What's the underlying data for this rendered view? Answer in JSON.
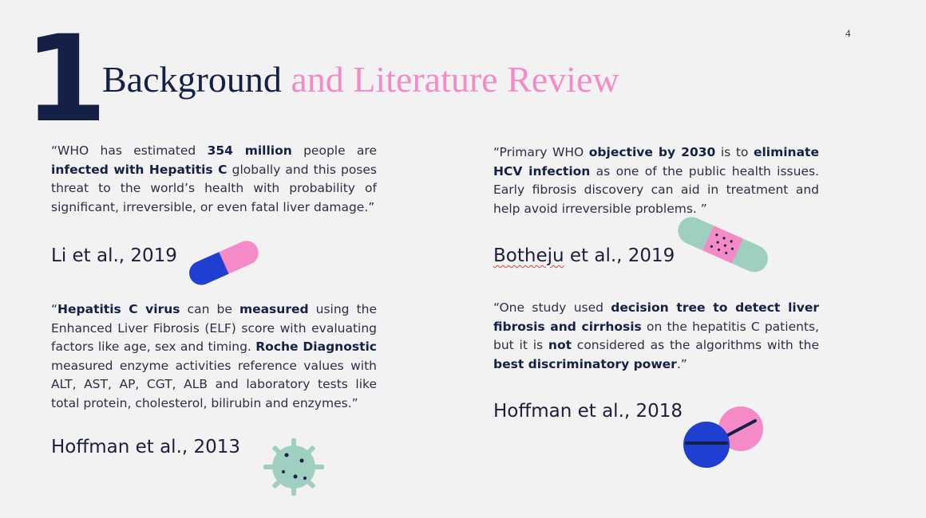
{
  "slide": {
    "page_number": "4",
    "big_number": "1",
    "title_part1": "Background",
    "title_part2": " and Literature Review"
  },
  "quotes": [
    {
      "segments": [
        {
          "t": "“WHO has estimated ",
          "b": false
        },
        {
          "t": "354 million",
          "b": true
        },
        {
          "t": " people are ",
          "b": false
        },
        {
          "t": "infected with Hepatitis C",
          "b": true
        },
        {
          "t": " globally and this poses threat to the world’s health with probability of significant, irreversible, or even fatal liver damage.”",
          "b": false
        }
      ],
      "citation": "Li et al., 2019"
    },
    {
      "segments": [
        {
          "t": "“Primary WHO ",
          "b": false
        },
        {
          "t": "objective by 2030",
          "b": true
        },
        {
          "t": " is to ",
          "b": false
        },
        {
          "t": "eliminate HCV infection",
          "b": true
        },
        {
          "t": " as one of the public health issues. Early fibrosis discovery can aid in treatment and help avoid irreversible problems. ”",
          "b": false
        }
      ],
      "citation_author": "Botheju",
      "citation_rest": " et al., 2019"
    },
    {
      "segments": [
        {
          "t": "“",
          "b": false
        },
        {
          "t": "Hepatitis C virus",
          "b": true
        },
        {
          "t": " can be ",
          "b": false
        },
        {
          "t": "measured",
          "b": true
        },
        {
          "t": " using the Enhanced Liver Fibrosis (ELF) score with evaluating factors like age, sex and timing. ",
          "b": false
        },
        {
          "t": "Roche Diagnostic",
          "b": true
        },
        {
          "t": " measured enzyme activities reference values with ALT, AST, AP, CGT, ALB and laboratory tests like total protein, cholesterol, bilirubin and enzymes.”",
          "b": false
        }
      ],
      "citation": "Hoffman et al., 2013"
    },
    {
      "segments": [
        {
          "t": "“One study used ",
          "b": false
        },
        {
          "t": "decision tree to detect liver fibrosis and cirrhosis",
          "b": true
        },
        {
          "t": " on the hepatitis C patients, but it is ",
          "b": false
        },
        {
          "t": "not",
          "b": true
        },
        {
          "t": " considered as the algorithms with the ",
          "b": false
        },
        {
          "t": "best discriminatory power",
          "b": true
        },
        {
          "t": ".”",
          "b": false
        }
      ],
      "citation": "Hoffman et al., 2018"
    }
  ],
  "icons": [
    "capsule-icon",
    "bandage-icon",
    "virus-icon",
    "pills-icon"
  ],
  "colors": {
    "navy": "#142045",
    "pink": "#f58bc6",
    "blue": "#1f3fd1",
    "teal": "#9fcfc0"
  }
}
